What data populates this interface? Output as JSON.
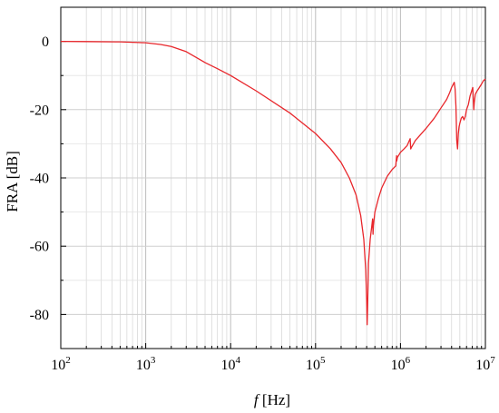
{
  "chart_data": {
    "type": "line",
    "title": "",
    "xlabel_var": "f",
    "xlabel_unit": " [Hz]",
    "ylabel": "FRA [dB]",
    "x_scale": "log",
    "xlim": [
      100,
      10000000
    ],
    "ylim": [
      -90,
      10
    ],
    "x_ticks": [
      {
        "value": 100,
        "base": "10",
        "exp": "2"
      },
      {
        "value": 1000,
        "base": "10",
        "exp": "3"
      },
      {
        "value": 10000,
        "base": "10",
        "exp": "4"
      },
      {
        "value": 100000,
        "base": "10",
        "exp": "5"
      },
      {
        "value": 1000000,
        "base": "10",
        "exp": "6"
      },
      {
        "value": 10000000,
        "base": "10",
        "exp": "7"
      }
    ],
    "y_ticks": [
      {
        "value": 0,
        "label": "0"
      },
      {
        "value": -20,
        "label": "-20"
      },
      {
        "value": -40,
        "label": "-40"
      },
      {
        "value": -60,
        "label": "-60"
      },
      {
        "value": -80,
        "label": "-80"
      }
    ],
    "grid": true,
    "line_color": "#e8262b",
    "series": [
      {
        "name": "",
        "x": [
          100,
          200,
          500,
          1000,
          1500,
          2000,
          3000,
          4000,
          5000,
          7000,
          10000,
          20000,
          50000,
          100000,
          150000,
          200000,
          250000,
          300000,
          340000,
          370000,
          390000,
          400000,
          405000,
          410000,
          420000,
          440000,
          460000,
          470000,
          475000,
          480000,
          500000,
          550000,
          600000,
          700000,
          800000,
          880000,
          900000,
          905000,
          920000,
          1000000,
          1100000,
          1200000,
          1300000,
          1320000,
          1350000,
          1500000,
          2000000,
          2500000,
          3000000,
          3500000,
          3800000,
          4000000,
          4200000,
          4300000,
          4400000,
          4500000,
          4600000,
          4700000,
          4800000,
          4900000,
          5000000,
          5200000,
          5400000,
          5600000,
          5800000,
          6000000,
          6300000,
          6600000,
          6900000,
          7100000,
          7200000,
          7300000,
          7400000,
          7600000,
          8000000,
          8500000,
          9000000,
          9500000,
          10000000
        ],
        "y": [
          0,
          -0.05,
          -0.15,
          -0.4,
          -0.9,
          -1.5,
          -3.0,
          -4.8,
          -6.2,
          -8.0,
          -10.0,
          -14.5,
          -21.0,
          -27.0,
          -31.5,
          -35.5,
          -40.0,
          -45.0,
          -51.0,
          -58.0,
          -67.0,
          -76.0,
          -83.0,
          -78.0,
          -65.0,
          -58.0,
          -54.0,
          -52.0,
          -56.5,
          -54.0,
          -50.0,
          -46.0,
          -43.0,
          -39.5,
          -37.5,
          -36.5,
          -33.5,
          -35.0,
          -34.0,
          -32.5,
          -31.5,
          -30.5,
          -28.5,
          -31.5,
          -31.0,
          -29.0,
          -25.5,
          -22.5,
          -19.5,
          -17.0,
          -15.0,
          -13.5,
          -12.5,
          -12.0,
          -14.0,
          -19.0,
          -29.0,
          -31.5,
          -27.0,
          -25.0,
          -24.0,
          -22.5,
          -22.0,
          -23.0,
          -22.0,
          -20.0,
          -18.5,
          -16.0,
          -14.5,
          -13.5,
          -17.0,
          -20.0,
          -18.0,
          -15.5,
          -14.5,
          -13.5,
          -12.5,
          -11.5,
          -11.0
        ]
      }
    ]
  }
}
